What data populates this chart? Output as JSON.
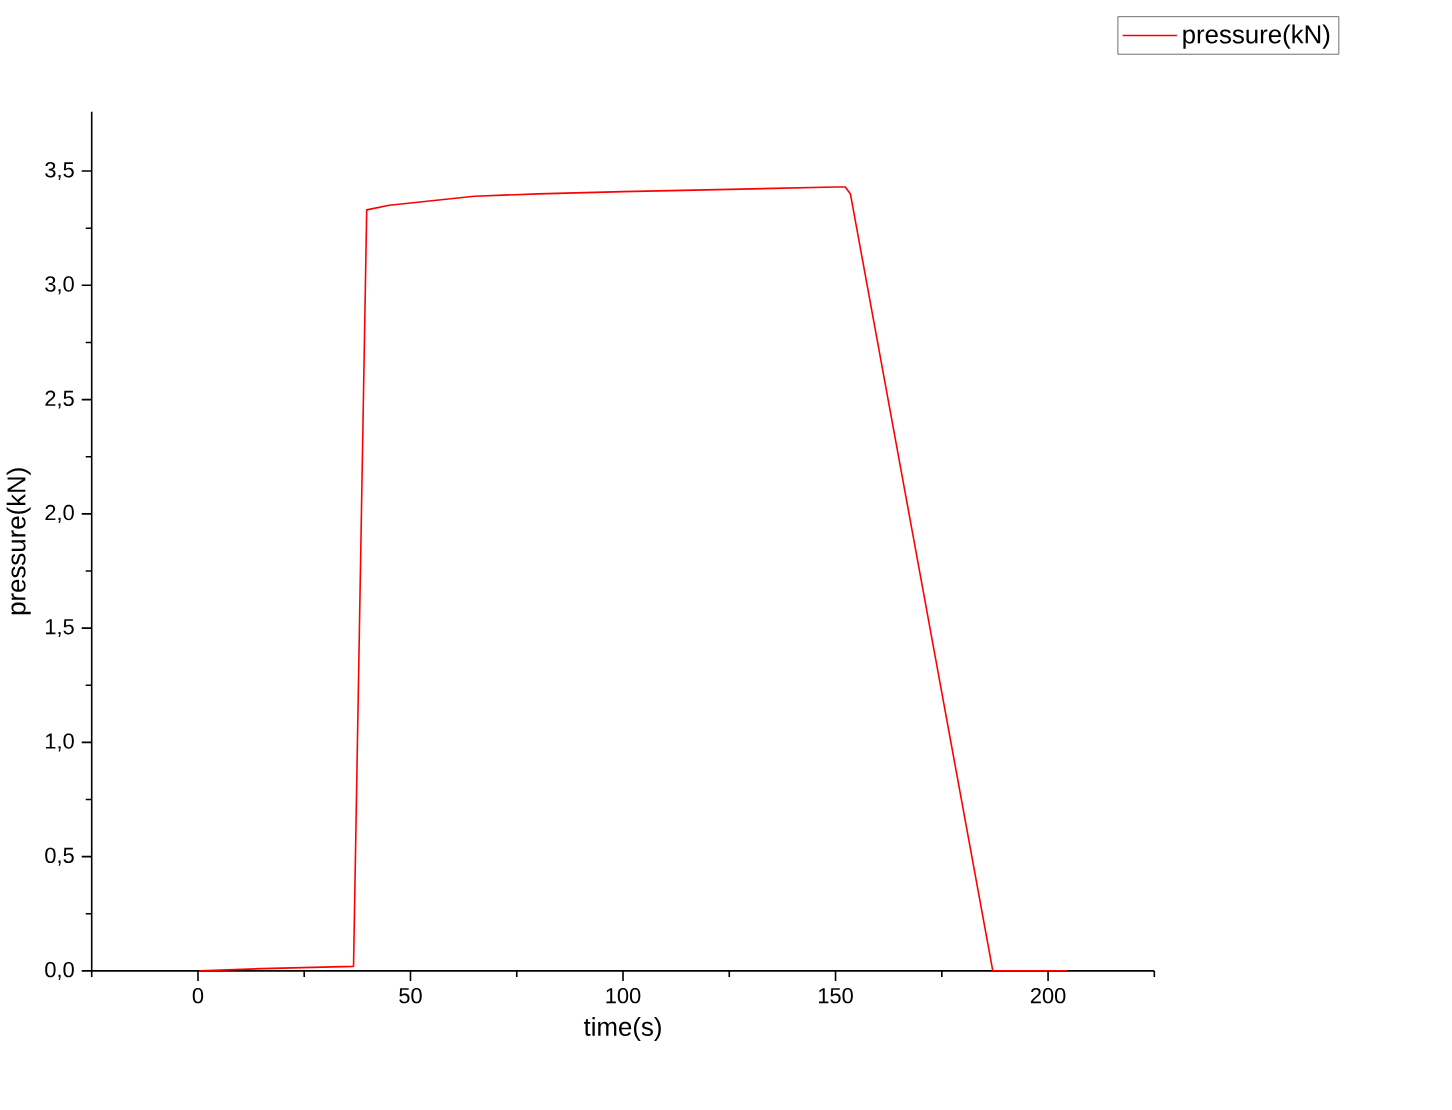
{
  "chart_data": {
    "type": "line",
    "xlabel": "time(s)",
    "ylabel": "pressure(kN)",
    "xlim": [
      -25,
      225
    ],
    "ylim": [
      0,
      3.76
    ],
    "xticks": [
      {
        "value": -25,
        "label": null
      },
      0,
      {
        "value": 25,
        "label": null
      },
      50,
      {
        "value": 75,
        "label": null
      },
      100,
      {
        "value": 125,
        "label": null
      },
      150,
      {
        "value": 175,
        "label": null
      },
      200,
      {
        "value": 225,
        "label": null
      }
    ],
    "yticks": [
      {
        "value": 0,
        "label": "0,0"
      },
      {
        "value": 0.25,
        "label": null
      },
      {
        "value": 0.5,
        "label": "0,5"
      },
      {
        "value": 0.75,
        "label": null
      },
      {
        "value": 1,
        "label": "1,0"
      },
      {
        "value": 1.25,
        "label": null
      },
      {
        "value": 1.5,
        "label": "1,5"
      },
      {
        "value": 1.75,
        "label": null
      },
      {
        "value": 2,
        "label": "2,0"
      },
      {
        "value": 2.25,
        "label": null
      },
      {
        "value": 2.5,
        "label": "2,5"
      },
      {
        "value": 2.75,
        "label": null
      },
      {
        "value": 3,
        "label": "3,0"
      },
      {
        "value": 3.25,
        "label": null
      },
      {
        "value": 3.5,
        "label": "3,5"
      }
    ],
    "legend": "top right",
    "grid": false,
    "marker": "none",
    "line_style": "solid",
    "series": [
      {
        "name": "pressure(kN)",
        "color": "#ff0000",
        "x": [
          0.3,
          15,
          36.6,
          39.7,
          45,
          55,
          65,
          80,
          100,
          125,
          150,
          152.3,
          153.5,
          187,
          204.5
        ],
        "values": [
          0,
          0.01,
          0.02,
          3.33,
          3.35,
          3.37,
          3.39,
          3.4,
          3.41,
          3.42,
          3.43,
          3.43,
          3.4,
          0,
          0
        ]
      }
    ]
  }
}
